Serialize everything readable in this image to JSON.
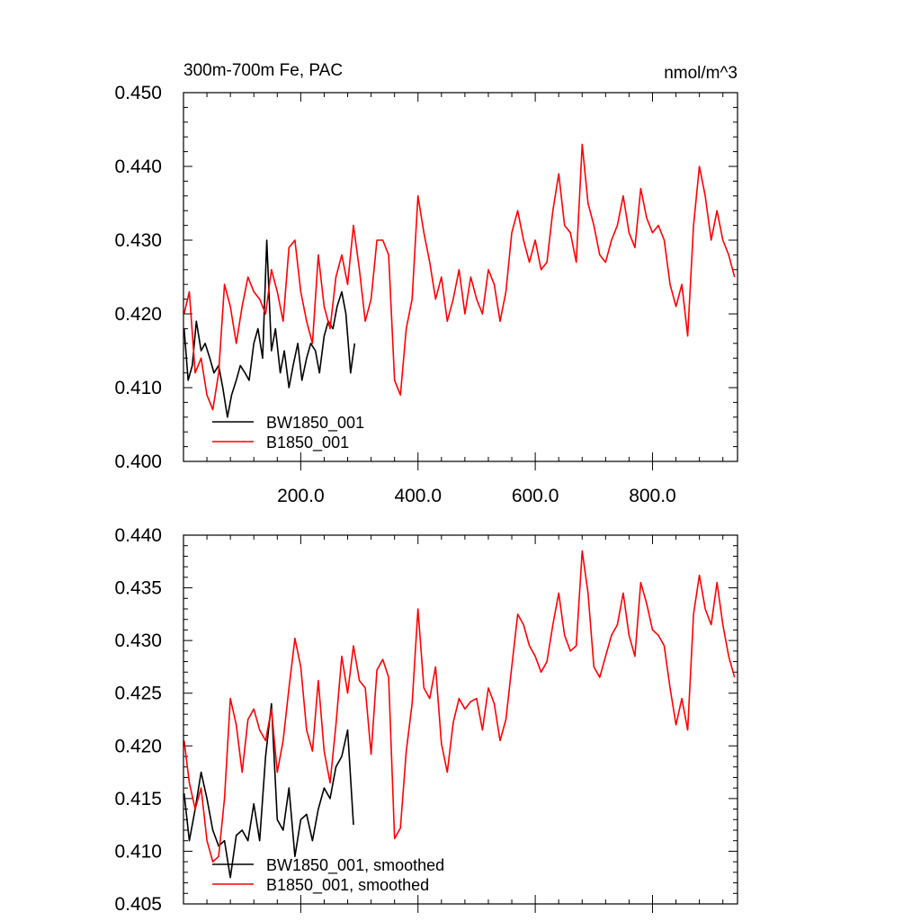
{
  "chart_data": [
    {
      "type": "line",
      "title": "300m-700m Fe, PAC",
      "units": "nmol/m^3",
      "xlim": [
        0,
        945
      ],
      "ylim": [
        0.4,
        0.45
      ],
      "x_ticks": [
        200,
        400,
        600,
        800
      ],
      "x_tick_labels": [
        "200.0",
        "400.0",
        "600.0",
        "800.0"
      ],
      "y_ticks": [
        0.4,
        0.41,
        0.42,
        0.43,
        0.44,
        0.45
      ],
      "y_tick_labels": [
        "0.400",
        "0.410",
        "0.420",
        "0.430",
        "0.440",
        "0.450"
      ],
      "legend_position": "bottom-left",
      "series": [
        {
          "name": "BW1850_001",
          "color": "#000000",
          "x": [
            1,
            8,
            15,
            22,
            30,
            37,
            45,
            52,
            60,
            67,
            75,
            82,
            90,
            97,
            105,
            112,
            120,
            127,
            135,
            142,
            150,
            157,
            165,
            172,
            180,
            187,
            195,
            202,
            210,
            217,
            225,
            232,
            240,
            247,
            255,
            262,
            270,
            277,
            285,
            292
          ],
          "values": [
            0.418,
            0.411,
            0.413,
            0.419,
            0.415,
            0.416,
            0.414,
            0.412,
            0.413,
            0.41,
            0.406,
            0.409,
            0.411,
            0.413,
            0.412,
            0.411,
            0.416,
            0.418,
            0.414,
            0.43,
            0.415,
            0.418,
            0.412,
            0.415,
            0.41,
            0.413,
            0.416,
            0.411,
            0.414,
            0.416,
            0.415,
            0.412,
            0.417,
            0.419,
            0.418,
            0.421,
            0.423,
            0.42,
            0.412,
            0.416
          ]
        },
        {
          "name": "B1850_001",
          "color": "#ff0000",
          "x": [
            1,
            10,
            20,
            30,
            40,
            50,
            60,
            70,
            80,
            90,
            100,
            110,
            120,
            130,
            140,
            150,
            160,
            170,
            180,
            190,
            200,
            210,
            220,
            230,
            240,
            250,
            260,
            270,
            280,
            290,
            300,
            310,
            320,
            330,
            340,
            350,
            360,
            370,
            380,
            390,
            400,
            410,
            420,
            430,
            440,
            450,
            460,
            470,
            480,
            490,
            500,
            510,
            520,
            530,
            540,
            550,
            560,
            570,
            580,
            590,
            600,
            610,
            620,
            630,
            640,
            650,
            660,
            670,
            680,
            690,
            700,
            710,
            720,
            730,
            740,
            750,
            760,
            770,
            780,
            790,
            800,
            810,
            820,
            830,
            840,
            850,
            860,
            870,
            880,
            890,
            900,
            910,
            920,
            930,
            940
          ],
          "values": [
            0.42,
            0.423,
            0.412,
            0.414,
            0.409,
            0.407,
            0.412,
            0.424,
            0.421,
            0.416,
            0.421,
            0.425,
            0.423,
            0.422,
            0.42,
            0.426,
            0.423,
            0.419,
            0.429,
            0.43,
            0.423,
            0.419,
            0.416,
            0.428,
            0.421,
            0.418,
            0.425,
            0.428,
            0.424,
            0.432,
            0.426,
            0.419,
            0.422,
            0.43,
            0.43,
            0.428,
            0.411,
            0.409,
            0.418,
            0.422,
            0.436,
            0.431,
            0.427,
            0.422,
            0.425,
            0.419,
            0.422,
            0.426,
            0.42,
            0.425,
            0.422,
            0.42,
            0.426,
            0.424,
            0.419,
            0.423,
            0.431,
            0.434,
            0.43,
            0.427,
            0.43,
            0.426,
            0.427,
            0.434,
            0.439,
            0.432,
            0.431,
            0.427,
            0.443,
            0.435,
            0.432,
            0.428,
            0.427,
            0.43,
            0.432,
            0.436,
            0.431,
            0.429,
            0.437,
            0.433,
            0.431,
            0.432,
            0.43,
            0.424,
            0.421,
            0.424,
            0.417,
            0.432,
            0.44,
            0.436,
            0.43,
            0.434,
            0.43,
            0.428,
            0.425
          ]
        }
      ]
    },
    {
      "type": "line",
      "xlim": [
        0,
        945
      ],
      "ylim": [
        0.405,
        0.44
      ],
      "y_ticks": [
        0.405,
        0.41,
        0.415,
        0.42,
        0.425,
        0.43,
        0.435,
        0.44
      ],
      "y_tick_labels": [
        "0.405",
        "0.410",
        "0.415",
        "0.420",
        "0.425",
        "0.430",
        "0.435",
        "0.440"
      ],
      "legend_position": "bottom-left",
      "series": [
        {
          "name": "BW1850_001, smoothed",
          "color": "#000000",
          "x": [
            1,
            10,
            20,
            30,
            40,
            50,
            60,
            70,
            80,
            90,
            100,
            110,
            120,
            130,
            140,
            150,
            160,
            170,
            180,
            190,
            200,
            210,
            220,
            230,
            240,
            250,
            260,
            270,
            280,
            290
          ],
          "values": [
            0.4155,
            0.411,
            0.414,
            0.4175,
            0.415,
            0.412,
            0.4105,
            0.411,
            0.4075,
            0.4115,
            0.412,
            0.411,
            0.4145,
            0.411,
            0.419,
            0.424,
            0.413,
            0.412,
            0.416,
            0.4095,
            0.413,
            0.4135,
            0.411,
            0.414,
            0.416,
            0.415,
            0.418,
            0.419,
            0.4215,
            0.4125
          ]
        },
        {
          "name": "B1850_001, smoothed",
          "color": "#ff0000",
          "x": [
            1,
            10,
            20,
            30,
            40,
            50,
            60,
            70,
            80,
            90,
            100,
            110,
            120,
            130,
            140,
            150,
            160,
            170,
            180,
            190,
            200,
            210,
            220,
            230,
            240,
            250,
            260,
            270,
            280,
            290,
            300,
            310,
            320,
            330,
            340,
            350,
            360,
            370,
            380,
            390,
            400,
            410,
            420,
            430,
            440,
            450,
            460,
            470,
            480,
            490,
            500,
            510,
            520,
            530,
            540,
            550,
            560,
            570,
            580,
            590,
            600,
            610,
            620,
            630,
            640,
            650,
            660,
            670,
            680,
            690,
            700,
            710,
            720,
            730,
            740,
            750,
            760,
            770,
            780,
            790,
            800,
            810,
            820,
            830,
            840,
            850,
            860,
            870,
            880,
            890,
            900,
            910,
            920,
            930,
            940
          ],
          "values": [
            0.4205,
            0.4165,
            0.414,
            0.416,
            0.411,
            0.409,
            0.4095,
            0.415,
            0.4245,
            0.422,
            0.4175,
            0.4225,
            0.4235,
            0.4215,
            0.4205,
            0.4235,
            0.4175,
            0.4205,
            0.4255,
            0.4302,
            0.4275,
            0.4215,
            0.4195,
            0.4262,
            0.4195,
            0.4165,
            0.422,
            0.4285,
            0.425,
            0.4295,
            0.4262,
            0.4255,
            0.4192,
            0.4272,
            0.4282,
            0.4265,
            0.4112,
            0.4122,
            0.4195,
            0.424,
            0.433,
            0.4255,
            0.4245,
            0.4275,
            0.4202,
            0.4175,
            0.4222,
            0.4245,
            0.4235,
            0.4242,
            0.4245,
            0.4215,
            0.4255,
            0.424,
            0.4205,
            0.4225,
            0.4275,
            0.4325,
            0.4315,
            0.4295,
            0.4285,
            0.427,
            0.428,
            0.4315,
            0.4345,
            0.4305,
            0.429,
            0.4295,
            0.4385,
            0.4345,
            0.4275,
            0.4265,
            0.4285,
            0.4305,
            0.4315,
            0.4345,
            0.4305,
            0.4285,
            0.4355,
            0.4335,
            0.431,
            0.4305,
            0.4295,
            0.4255,
            0.422,
            0.4245,
            0.4215,
            0.4325,
            0.4362,
            0.433,
            0.4315,
            0.4355,
            0.4315,
            0.4285,
            0.4265
          ]
        }
      ]
    }
  ]
}
